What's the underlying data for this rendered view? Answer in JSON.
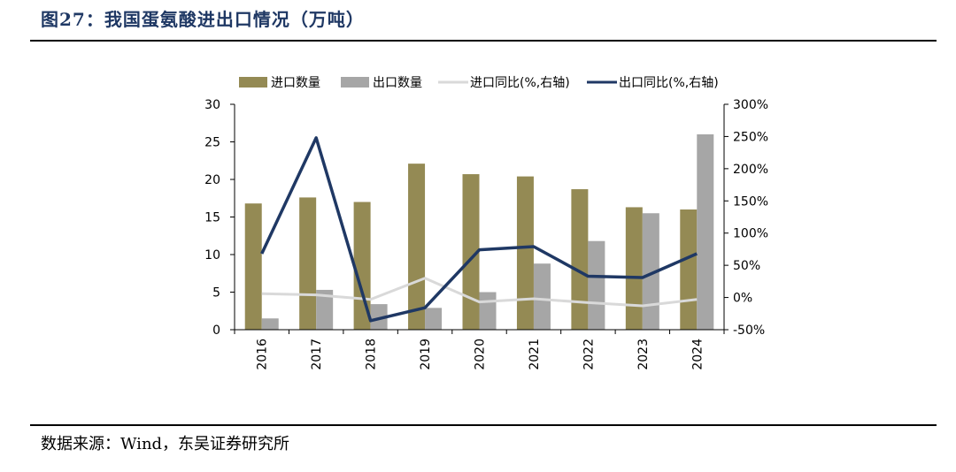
{
  "figure": {
    "title": "图27：我国蛋氨酸进出口情况（万吨）",
    "source": "数据来源：Wind，东吴证券研究所"
  },
  "colors": {
    "import_bar": "#948A54",
    "export_bar": "#A6A6A6",
    "import_yoy_line": "#D9D9D9",
    "export_yoy_line": "#1F3864",
    "title": "#1f3864"
  },
  "chart_data": {
    "type": "bar",
    "categories": [
      "2016",
      "2017",
      "2018",
      "2019",
      "2020",
      "2021",
      "2022",
      "2023",
      "2024"
    ],
    "series": [
      {
        "name": "进口数量",
        "type": "bar",
        "axis": "left",
        "values": [
          16.8,
          17.6,
          17.0,
          22.1,
          20.7,
          20.4,
          18.7,
          16.3,
          16.0
        ]
      },
      {
        "name": "出口数量",
        "type": "bar",
        "axis": "left",
        "values": [
          1.5,
          5.3,
          3.4,
          2.9,
          5.0,
          8.8,
          11.8,
          15.5,
          26.0
        ]
      },
      {
        "name": "进口同比(%,右轴)",
        "type": "line",
        "axis": "right",
        "values": [
          6,
          4,
          -3,
          30,
          -7,
          -2,
          -8,
          -13,
          -3
        ]
      },
      {
        "name": "出口同比(%,右轴)",
        "type": "line",
        "axis": "right",
        "values": [
          68,
          248,
          -36,
          -16,
          74,
          79,
          33,
          31,
          68
        ]
      }
    ],
    "y_left": {
      "min": 0,
      "max": 30,
      "ticks": [
        "0",
        "5",
        "10",
        "15",
        "20",
        "25",
        "30"
      ]
    },
    "y_right": {
      "min": -50,
      "max": 300,
      "ticks": [
        "-50%",
        "0%",
        "50%",
        "100%",
        "150%",
        "200%",
        "250%",
        "300%"
      ]
    },
    "legend_position": "top",
    "grid": false
  }
}
